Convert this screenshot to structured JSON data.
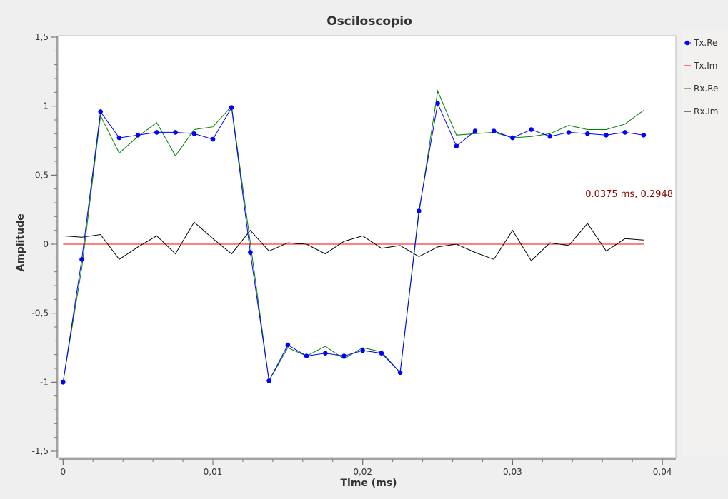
{
  "chart_data": {
    "type": "line",
    "title": "Osciloscopio",
    "xlabel": "Time (ms)",
    "ylabel": "Amplitude",
    "xlim": [
      -0.0003,
      0.0409
    ],
    "ylim": [
      -1.5,
      1.5
    ],
    "xticks": [
      {
        "value": 0,
        "label": "0"
      },
      {
        "value": 0.01,
        "label": "0,01"
      },
      {
        "value": 0.02,
        "label": "0,02"
      },
      {
        "value": 0.03,
        "label": "0,03"
      },
      {
        "value": 0.04,
        "label": "0,04"
      }
    ],
    "yticks": [
      {
        "value": 1.5,
        "label": "1,5"
      },
      {
        "value": 1,
        "label": "1"
      },
      {
        "value": 0.5,
        "label": "0,5"
      },
      {
        "value": 0,
        "label": "0"
      },
      {
        "value": -0.5,
        "label": "-0,5"
      },
      {
        "value": -1,
        "label": "-1"
      },
      {
        "value": -1.5,
        "label": "-1,5"
      }
    ],
    "grid": false,
    "legend_position": "right",
    "cursor_readout": "0.0375 ms, 0.2948",
    "x": [
      0,
      0.00125,
      0.0025,
      0.00375,
      0.005,
      0.00625,
      0.0075,
      0.00875,
      0.01,
      0.01125,
      0.0125,
      0.01375,
      0.015,
      0.01625,
      0.0175,
      0.01875,
      0.02,
      0.02125,
      0.0225,
      0.02375,
      0.025,
      0.02625,
      0.0275,
      0.02875,
      0.03,
      0.03125,
      0.0325,
      0.03375,
      0.035,
      0.03625,
      0.0375,
      0.03875
    ],
    "series": [
      {
        "name": "Tx.Re",
        "color": "#0000ff",
        "markers": true,
        "values": [
          -1.0,
          -0.11,
          0.96,
          0.77,
          0.79,
          0.81,
          0.81,
          0.8,
          0.76,
          0.99,
          -0.06,
          -0.99,
          -0.73,
          -0.81,
          -0.79,
          -0.81,
          -0.77,
          -0.79,
          -0.93,
          0.24,
          1.02,
          0.71,
          0.82,
          0.82,
          0.77,
          0.83,
          0.78,
          0.81,
          0.8,
          0.79,
          0.81,
          0.79
        ]
      },
      {
        "name": "Tx.Im",
        "color": "#ff0000",
        "markers": false,
        "values": [
          0,
          0,
          0,
          0,
          0,
          0,
          0,
          0,
          0,
          0,
          0,
          0,
          0,
          0,
          0,
          0,
          0,
          0,
          0,
          0,
          0,
          0,
          0,
          0,
          0,
          0,
          0,
          0,
          0,
          0,
          0,
          0
        ]
      },
      {
        "name": "Rx.Re",
        "color": "#008000",
        "markers": false,
        "values": [
          -1.0,
          -0.17,
          0.93,
          0.66,
          0.78,
          0.88,
          0.64,
          0.83,
          0.85,
          1.0,
          0.01,
          -0.99,
          -0.75,
          -0.81,
          -0.74,
          -0.83,
          -0.75,
          -0.78,
          -0.93,
          0.22,
          1.11,
          0.79,
          0.8,
          0.81,
          0.77,
          0.78,
          0.8,
          0.86,
          0.83,
          0.83,
          0.87,
          0.97
        ]
      },
      {
        "name": "Rx.Im",
        "color": "#000000",
        "markers": false,
        "values": [
          0.06,
          0.05,
          0.07,
          -0.11,
          -0.02,
          0.06,
          -0.07,
          0.16,
          0.04,
          -0.07,
          0.1,
          -0.05,
          0.01,
          0.0,
          -0.07,
          0.02,
          0.06,
          -0.03,
          -0.01,
          -0.09,
          -0.02,
          0.0,
          -0.06,
          -0.11,
          0.1,
          -0.12,
          0.01,
          -0.01,
          0.15,
          -0.05,
          0.04,
          0.03
        ]
      }
    ]
  }
}
